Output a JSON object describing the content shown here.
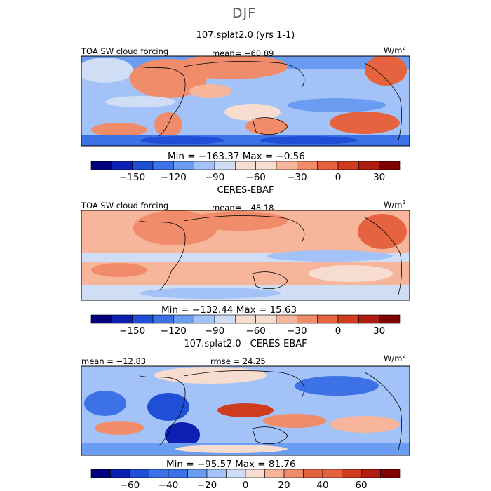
{
  "figure": {
    "season": "DJF",
    "colorbar_colors": [
      "#00007f",
      "#0b1fb3",
      "#1f4fd6",
      "#3c72e6",
      "#6a9cf2",
      "#a3c2f7",
      "#d0def5",
      "#f7dcd0",
      "#f7b59c",
      "#f08c6a",
      "#e5633f",
      "#d13b1d",
      "#b01d10",
      "#7f0000"
    ]
  },
  "chart_data": [
    {
      "type": "heatmap",
      "title": "107.splat2.0 (yrs 1-1)",
      "variable_label": "TOA SW cloud forcing",
      "mean_text": "mean= −60.89",
      "units_base": "W/m",
      "units_exp": "2",
      "min_max_text": "Min = −163.37 Max =  −0.56",
      "min": -163.37,
      "max": -0.56,
      "mean": -60.89,
      "colorbar": {
        "levels": [
          -180,
          -165,
          -150,
          -135,
          -120,
          -105,
          -90,
          -75,
          -60,
          -45,
          -30,
          -15,
          0,
          15,
          30,
          45
        ],
        "tick_values": [
          -150,
          -120,
          -90,
          -60,
          -30,
          0,
          30
        ],
        "tick_labels": [
          "−150",
          "−120",
          "−90",
          "−60",
          "−30",
          "0",
          "30"
        ]
      }
    },
    {
      "type": "heatmap",
      "title": "CERES-EBAF",
      "variable_label": "TOA SW cloud forcing",
      "mean_text": "mean= −48.18",
      "units_base": "W/m",
      "units_exp": "2",
      "min_max_text": "Min = −132.44 Max =  15.63",
      "min": -132.44,
      "max": 15.63,
      "mean": -48.18,
      "colorbar": {
        "levels": [
          -180,
          -165,
          -150,
          -135,
          -120,
          -105,
          -90,
          -75,
          -60,
          -45,
          -30,
          -15,
          0,
          15,
          30,
          45
        ],
        "tick_values": [
          -150,
          -120,
          -90,
          -60,
          -30,
          0,
          30
        ],
        "tick_labels": [
          "−150",
          "−120",
          "−90",
          "−60",
          "−30",
          "0",
          "30"
        ]
      }
    },
    {
      "type": "heatmap",
      "title": "107.splat2.0 - CERES-EBAF",
      "mean_text": "mean = −12.83",
      "rmse_text": "rmse =  24.25",
      "units_base": "W/m",
      "units_exp": "2",
      "min_max_text": "Min = −95.57 Max =  81.76",
      "min": -95.57,
      "max": 81.76,
      "mean": -12.83,
      "rmse": 24.25,
      "colorbar": {
        "levels": [
          -80,
          -70,
          -60,
          -50,
          -40,
          -30,
          -20,
          -10,
          0,
          10,
          20,
          30,
          40,
          50,
          60,
          70,
          80
        ],
        "tick_values": [
          -60,
          -40,
          -20,
          0,
          20,
          40,
          60
        ],
        "tick_labels": [
          "−60",
          "−40",
          "−20",
          "0",
          "20",
          "40",
          "60"
        ]
      }
    }
  ]
}
